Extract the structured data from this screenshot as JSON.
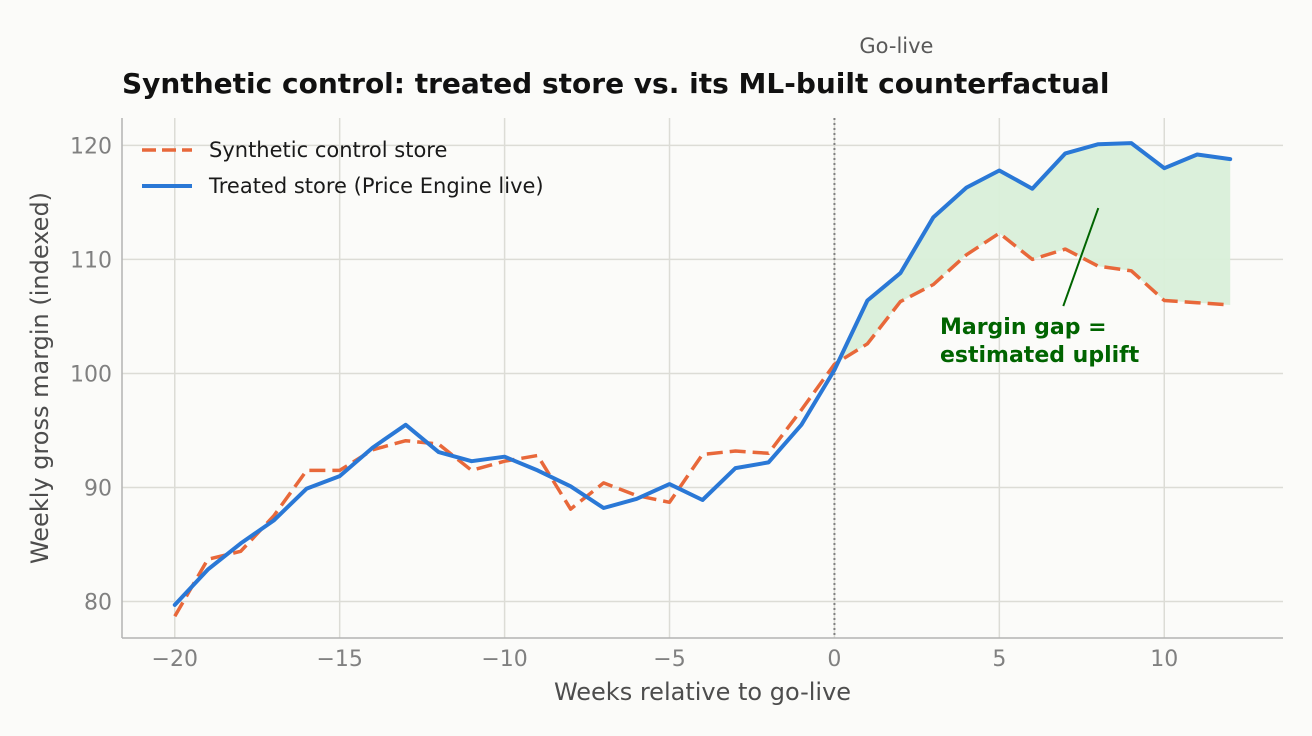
{
  "chart_data": {
    "type": "line",
    "title": "Synthetic control: treated store vs. its ML-built counterfactual",
    "xlabel": "Weeks relative to go-live",
    "ylabel": "Weekly gross margin (indexed)",
    "xlim": [
      -21.6,
      13.6
    ],
    "ylim": [
      76.8,
      122.4
    ],
    "xticks": [
      -20,
      -15,
      -10,
      -5,
      0,
      5,
      10
    ],
    "xtick_labels": [
      "−20",
      "−15",
      "−10",
      "−5",
      "0",
      "5",
      "10"
    ],
    "yticks": [
      80,
      90,
      100,
      110,
      120
    ],
    "ytick_labels": [
      "80",
      "90",
      "100",
      "110",
      "120"
    ],
    "grid": true,
    "legend_position": "top-left",
    "x": [
      -20,
      -19,
      -18,
      -17,
      -16,
      -15,
      -14,
      -13,
      -12,
      -11,
      -10,
      -9,
      -8,
      -7,
      -6,
      -5,
      -4,
      -3,
      -2,
      -1,
      0,
      1,
      2,
      3,
      4,
      5,
      6,
      7,
      8,
      9,
      10,
      11,
      12
    ],
    "series": [
      {
        "name": "Synthetic control store",
        "style": "dashed",
        "color": "#e8683a",
        "values": [
          78.7,
          83.7,
          84.4,
          87.5,
          91.5,
          91.5,
          93.3,
          94.1,
          93.8,
          91.5,
          92.3,
          92.8,
          88.1,
          90.4,
          89.3,
          88.7,
          92.9,
          93.2,
          93.0,
          96.8,
          100.8,
          102.6,
          106.3,
          107.8,
          110.4,
          112.3,
          110.0,
          110.9,
          109.4,
          109.0,
          106.4,
          106.2,
          106.0
        ]
      },
      {
        "name": "Treated store (Price Engine live)",
        "style": "solid",
        "color": "#2a78d6",
        "values": [
          79.7,
          82.8,
          85.1,
          87.1,
          89.9,
          91.0,
          93.5,
          95.5,
          93.1,
          92.3,
          92.7,
          91.5,
          90.1,
          88.2,
          89.0,
          90.3,
          88.9,
          91.7,
          92.2,
          95.5,
          100.3,
          106.4,
          108.8,
          113.7,
          116.3,
          117.8,
          116.2,
          119.3,
          120.1,
          120.2,
          118.0,
          119.2,
          118.8
        ]
      }
    ],
    "shaded_region": {
      "from_x": 0,
      "to_x": 12,
      "color": "#d9efd9"
    },
    "vline": {
      "x": 0,
      "label": "Go-live",
      "color": "#808080"
    },
    "annotation": {
      "lines": [
        "Margin gap =",
        "estimated uplift"
      ],
      "color": "#006400",
      "text_at": [
        3.2,
        101.0
      ],
      "arrow_to": [
        8,
        114.5
      ]
    }
  }
}
